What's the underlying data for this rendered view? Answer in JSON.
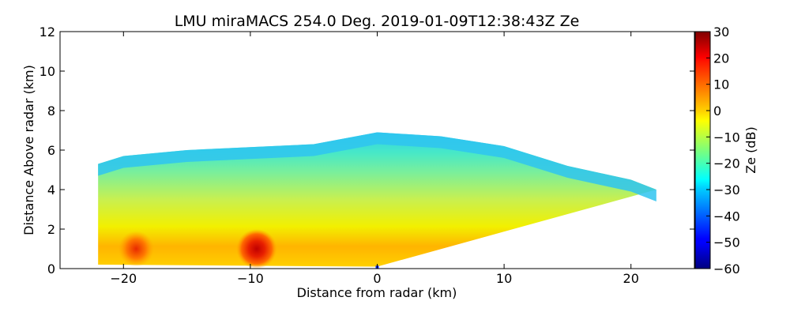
{
  "chart_data": {
    "type": "heatmap",
    "title": "LMU miraMACS 254.0 Deg. 2019-01-09T12:38:43Z  Ze",
    "xlabel": "Distance from radar (km)",
    "ylabel": "Distance Above radar  (km)",
    "xlim": [
      -25,
      25
    ],
    "ylim": [
      0,
      12
    ],
    "xticks": [
      -20,
      -10,
      0,
      10,
      20
    ],
    "xtick_labels": [
      "−20",
      "−10",
      "0",
      "10",
      "20"
    ],
    "yticks": [
      0,
      2,
      4,
      6,
      8,
      10,
      12
    ],
    "ytick_labels": [
      "0",
      "2",
      "4",
      "6",
      "8",
      "10",
      "12"
    ],
    "grid": false,
    "colorbar": {
      "label": "Ze (dB)",
      "range": [
        -60,
        30
      ],
      "colormap": "jet",
      "ticks": [
        30,
        20,
        10,
        0,
        -10,
        -20,
        -30,
        -40,
        -50,
        -60
      ],
      "tick_labels": [
        "30",
        "20",
        "10",
        "0",
        "−10",
        "−20",
        "−30",
        "−40",
        "−50",
        "−60"
      ]
    },
    "echo_region": {
      "x_range_km": [
        -22,
        22
      ],
      "top_height_km_at_x": [
        [
          -22,
          5.3
        ],
        [
          -20,
          5.7
        ],
        [
          -15,
          6.0
        ],
        [
          -5,
          6.3
        ],
        [
          0,
          6.9
        ],
        [
          5,
          6.7
        ],
        [
          10,
          6.2
        ],
        [
          15,
          5.2
        ],
        [
          20,
          4.5
        ],
        [
          22,
          4.0
        ]
      ],
      "bottom_height_km_at_x": [
        [
          -22,
          0.2
        ],
        [
          0,
          0.1
        ],
        [
          22,
          4.0
        ]
      ],
      "strong_cores": [
        {
          "x_km": -9.5,
          "height_km": 1.0,
          "ze_db": 25
        },
        {
          "x_km": -19,
          "height_km": 1.0,
          "ze_db": 18
        }
      ]
    }
  }
}
